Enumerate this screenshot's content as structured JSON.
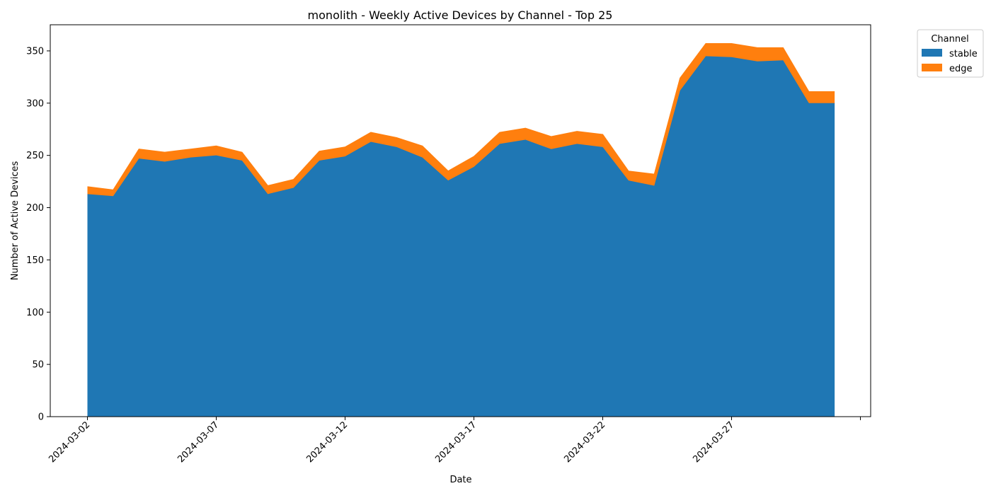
{
  "chart_data": {
    "type": "area",
    "stacked": true,
    "title": "monolith - Weekly Active Devices by Channel - Top 25",
    "xlabel": "Date",
    "ylabel": "Number of Active Devices",
    "x": [
      "2024-03-02",
      "2024-03-03",
      "2024-03-04",
      "2024-03-05",
      "2024-03-06",
      "2024-03-07",
      "2024-03-08",
      "2024-03-09",
      "2024-03-10",
      "2024-03-11",
      "2024-03-12",
      "2024-03-13",
      "2024-03-14",
      "2024-03-15",
      "2024-03-16",
      "2024-03-17",
      "2024-03-18",
      "2024-03-19",
      "2024-03-20",
      "2024-03-21",
      "2024-03-22",
      "2024-03-23",
      "2024-03-24",
      "2024-03-25",
      "2024-03-26",
      "2024-03-27",
      "2024-03-28",
      "2024-03-29",
      "2024-03-30",
      "2024-03-31"
    ],
    "series": [
      {
        "name": "stable",
        "color": "#1f77b4",
        "values": [
          213,
          211,
          247,
          244,
          248,
          250,
          245,
          213,
          219,
          245,
          249,
          263,
          258,
          248,
          226,
          239,
          261,
          265,
          256,
          261,
          258,
          226,
          221,
          312,
          345,
          344,
          340,
          341,
          300,
          300
        ]
      },
      {
        "name": "edge",
        "color": "#ff7f0e",
        "values": [
          7,
          6,
          9,
          9,
          8,
          9,
          8,
          8,
          8,
          9,
          9,
          9,
          9,
          11,
          9,
          10,
          11,
          11,
          12,
          12,
          12,
          9,
          11,
          12,
          12,
          13,
          13,
          12,
          11,
          11
        ]
      }
    ],
    "xticks": [
      "2024-03-02",
      "2024-03-07",
      "2024-03-12",
      "2024-03-17",
      "2024-03-22",
      "2024-03-27"
    ],
    "yticks": [
      0,
      50,
      100,
      150,
      200,
      250,
      300,
      350
    ],
    "ylim": [
      0,
      375
    ],
    "grid": false,
    "legend": {
      "title": "Channel",
      "position": "outside-top-right"
    }
  }
}
